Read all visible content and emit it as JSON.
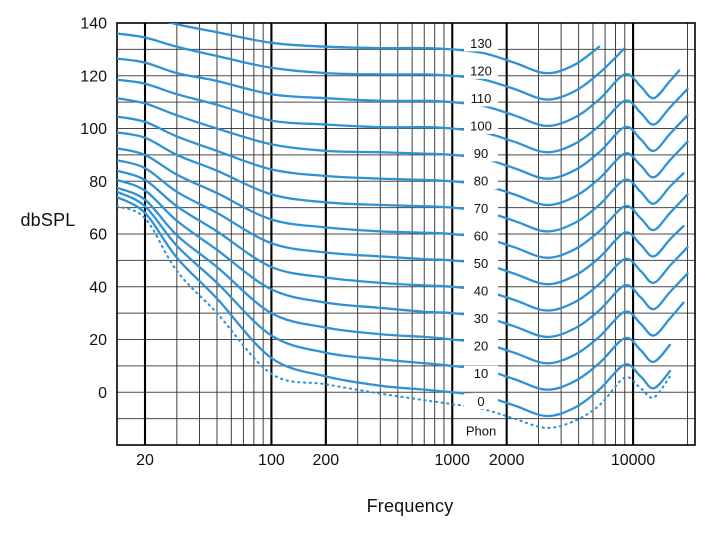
{
  "chart_data": {
    "type": "line",
    "xlabel": "Frequency",
    "ylabel": "dbSPL",
    "curve_unit_label": "Phon",
    "xscale": "log",
    "xlim": [
      14,
      22000
    ],
    "ylim": [
      -20,
      140
    ],
    "grid": true,
    "curve_color": "#2E92D5",
    "grid_color_h": "#4a4a4a",
    "grid_color_minor": "#2b2b2b",
    "grid_color_major": "#000000",
    "text_color": "#111111",
    "x_major_gridlines": [
      20,
      100,
      200,
      1000,
      2000,
      10000
    ],
    "x_tick_labels": [
      "20",
      "100",
      "200",
      "1000",
      "2000",
      "10000"
    ],
    "x_minor_gridlines": [
      30,
      40,
      50,
      60,
      70,
      80,
      90,
      300,
      400,
      500,
      600,
      700,
      800,
      900,
      3000,
      4000,
      5000,
      6000,
      7000,
      8000,
      9000,
      20000
    ],
    "y_gridlines": [
      -10,
      0,
      10,
      20,
      30,
      40,
      50,
      60,
      70,
      80,
      90,
      100,
      110,
      120,
      130
    ],
    "y_tick_values": [
      0,
      20,
      40,
      60,
      80,
      100,
      120,
      140
    ],
    "y_tick_labels": [
      "0",
      "20",
      "40",
      "60",
      "80",
      "100",
      "120",
      "140"
    ],
    "series": [
      {
        "name": "130",
        "phon": 130,
        "style": "solid",
        "labeled": true,
        "points": [
          [
            14,
            144
          ],
          [
            20,
            143
          ],
          [
            30,
            139.5
          ],
          [
            50,
            136.5
          ],
          [
            100,
            132.5
          ],
          [
            200,
            131
          ],
          [
            400,
            130.5
          ],
          [
            700,
            130.5
          ],
          [
            1000,
            130
          ],
          [
            1500,
            128.5
          ],
          [
            2200,
            125
          ],
          [
            3300,
            121
          ],
          [
            4700,
            124
          ],
          [
            6500,
            131
          ]
        ]
      },
      {
        "name": "120",
        "phon": 120,
        "style": "solid",
        "labeled": true,
        "points": [
          [
            14,
            136
          ],
          [
            20,
            134.5
          ],
          [
            30,
            131
          ],
          [
            50,
            127.5
          ],
          [
            100,
            123
          ],
          [
            200,
            121
          ],
          [
            400,
            120.5
          ],
          [
            700,
            120.5
          ],
          [
            1000,
            120
          ],
          [
            1500,
            118.5
          ],
          [
            2200,
            115
          ],
          [
            3300,
            111
          ],
          [
            4700,
            114
          ],
          [
            6500,
            121
          ],
          [
            9000,
            130.5
          ]
        ]
      },
      {
        "name": "110",
        "phon": 110,
        "style": "solid",
        "labeled": true,
        "points": [
          [
            14,
            126.5
          ],
          [
            20,
            125
          ],
          [
            30,
            121
          ],
          [
            50,
            118
          ],
          [
            100,
            113
          ],
          [
            200,
            111.5
          ],
          [
            400,
            110.5
          ],
          [
            700,
            110.5
          ],
          [
            1000,
            110
          ],
          [
            1500,
            108.5
          ],
          [
            2200,
            105
          ],
          [
            3300,
            101
          ],
          [
            4700,
            104
          ],
          [
            6500,
            111
          ],
          [
            9000,
            120.5
          ],
          [
            11000,
            116
          ],
          [
            13000,
            111.5
          ],
          [
            16000,
            118
          ],
          [
            18000,
            122
          ]
        ]
      },
      {
        "name": "100",
        "phon": 100,
        "style": "solid",
        "labeled": true,
        "points": [
          [
            14,
            118.5
          ],
          [
            20,
            117
          ],
          [
            30,
            113
          ],
          [
            50,
            109
          ],
          [
            100,
            103
          ],
          [
            200,
            101.5
          ],
          [
            400,
            100.5
          ],
          [
            700,
            100.5
          ],
          [
            1000,
            100
          ],
          [
            1500,
            98.5
          ],
          [
            2200,
            95
          ],
          [
            3300,
            91
          ],
          [
            4700,
            94
          ],
          [
            6500,
            101
          ],
          [
            9000,
            110.5
          ],
          [
            11000,
            106
          ],
          [
            13000,
            101.5
          ],
          [
            16000,
            108
          ],
          [
            20000,
            115
          ]
        ]
      },
      {
        "name": "90",
        "phon": 90,
        "style": "solid",
        "labeled": true,
        "points": [
          [
            14,
            111.5
          ],
          [
            20,
            109.5
          ],
          [
            30,
            105
          ],
          [
            50,
            100
          ],
          [
            100,
            94
          ],
          [
            200,
            91.5
          ],
          [
            400,
            91
          ],
          [
            700,
            90.5
          ],
          [
            1000,
            90
          ],
          [
            1500,
            88.5
          ],
          [
            2200,
            85
          ],
          [
            3300,
            81
          ],
          [
            4700,
            84
          ],
          [
            6500,
            91
          ],
          [
            9000,
            100.5
          ],
          [
            11000,
            96
          ],
          [
            13000,
            91.5
          ],
          [
            16000,
            98
          ],
          [
            20000,
            105
          ]
        ]
      },
      {
        "name": "80",
        "phon": 80,
        "style": "solid",
        "labeled": true,
        "points": [
          [
            14,
            104.5
          ],
          [
            20,
            102.5
          ],
          [
            30,
            97
          ],
          [
            50,
            91.5
          ],
          [
            100,
            84.5
          ],
          [
            200,
            82
          ],
          [
            400,
            81
          ],
          [
            700,
            80.5
          ],
          [
            1000,
            80
          ],
          [
            1500,
            78.5
          ],
          [
            2200,
            75
          ],
          [
            3300,
            71
          ],
          [
            4700,
            74
          ],
          [
            6500,
            81
          ],
          [
            9000,
            90.5
          ],
          [
            11000,
            86
          ],
          [
            13000,
            81.5
          ],
          [
            16000,
            88
          ],
          [
            20000,
            95
          ]
        ]
      },
      {
        "name": "70",
        "phon": 70,
        "style": "solid",
        "labeled": true,
        "points": [
          [
            14,
            98.5
          ],
          [
            20,
            96.5
          ],
          [
            30,
            90
          ],
          [
            50,
            84
          ],
          [
            100,
            75
          ],
          [
            200,
            72
          ],
          [
            400,
            71
          ],
          [
            700,
            70.5
          ],
          [
            1000,
            70
          ],
          [
            1500,
            68.5
          ],
          [
            2200,
            65
          ],
          [
            3300,
            61
          ],
          [
            4700,
            64
          ],
          [
            6500,
            71
          ],
          [
            9000,
            80.5
          ],
          [
            11000,
            76
          ],
          [
            13000,
            71.5
          ],
          [
            16000,
            78
          ],
          [
            19000,
            83
          ]
        ]
      },
      {
        "name": "60",
        "phon": 60,
        "style": "solid",
        "labeled": true,
        "points": [
          [
            14,
            92.5
          ],
          [
            20,
            90
          ],
          [
            30,
            82.5
          ],
          [
            50,
            75.5
          ],
          [
            100,
            65.5
          ],
          [
            200,
            62.5
          ],
          [
            400,
            61
          ],
          [
            700,
            60.5
          ],
          [
            1000,
            60
          ],
          [
            1500,
            58.5
          ],
          [
            2200,
            55
          ],
          [
            3300,
            51
          ],
          [
            4700,
            54
          ],
          [
            6500,
            61
          ],
          [
            9000,
            70.5
          ],
          [
            11000,
            66
          ],
          [
            13000,
            61.5
          ],
          [
            16000,
            68
          ],
          [
            20000,
            75
          ]
        ]
      },
      {
        "name": "50",
        "phon": 50,
        "style": "solid",
        "labeled": true,
        "points": [
          [
            14,
            88
          ],
          [
            20,
            85
          ],
          [
            30,
            76
          ],
          [
            50,
            68
          ],
          [
            100,
            56.5
          ],
          [
            200,
            53
          ],
          [
            400,
            51.5
          ],
          [
            700,
            50.5
          ],
          [
            1000,
            50
          ],
          [
            1500,
            48.5
          ],
          [
            2200,
            45
          ],
          [
            3300,
            41
          ],
          [
            4700,
            44
          ],
          [
            6500,
            51
          ],
          [
            9000,
            60.5
          ],
          [
            11000,
            56
          ],
          [
            13000,
            51.5
          ],
          [
            16000,
            58
          ],
          [
            19000,
            63
          ]
        ]
      },
      {
        "name": "40",
        "phon": 40,
        "style": "solid",
        "labeled": true,
        "points": [
          [
            14,
            84
          ],
          [
            20,
            80.5
          ],
          [
            30,
            70.5
          ],
          [
            50,
            61
          ],
          [
            100,
            47.5
          ],
          [
            200,
            43.5
          ],
          [
            400,
            41.5
          ],
          [
            700,
            40.5
          ],
          [
            1000,
            40
          ],
          [
            1500,
            38.5
          ],
          [
            2200,
            35
          ],
          [
            3300,
            31
          ],
          [
            4700,
            34
          ],
          [
            6500,
            41
          ],
          [
            9000,
            50.5
          ],
          [
            11000,
            46
          ],
          [
            13000,
            41.5
          ],
          [
            16000,
            48
          ],
          [
            20000,
            55
          ]
        ]
      },
      {
        "name": "30",
        "phon": 30,
        "style": "solid",
        "labeled": true,
        "points": [
          [
            14,
            80.5
          ],
          [
            20,
            76.5
          ],
          [
            30,
            65
          ],
          [
            50,
            54
          ],
          [
            100,
            39
          ],
          [
            200,
            34
          ],
          [
            400,
            32
          ],
          [
            700,
            30.5
          ],
          [
            1000,
            30
          ],
          [
            1500,
            28.5
          ],
          [
            2200,
            25
          ],
          [
            3300,
            21
          ],
          [
            4700,
            24
          ],
          [
            6500,
            31
          ],
          [
            9000,
            40.5
          ],
          [
            11000,
            36
          ],
          [
            13000,
            31.5
          ],
          [
            16000,
            38
          ],
          [
            20000,
            45
          ]
        ]
      },
      {
        "name": "20",
        "phon": 20,
        "style": "solid",
        "labeled": true,
        "points": [
          [
            14,
            77.5
          ],
          [
            20,
            73
          ],
          [
            30,
            59.5
          ],
          [
            50,
            47.5
          ],
          [
            100,
            30
          ],
          [
            200,
            24.5
          ],
          [
            400,
            22
          ],
          [
            700,
            21
          ],
          [
            1000,
            20
          ],
          [
            1500,
            18.5
          ],
          [
            2200,
            15
          ],
          [
            3300,
            11
          ],
          [
            4700,
            14
          ],
          [
            6500,
            21
          ],
          [
            9000,
            30.5
          ],
          [
            11000,
            26
          ],
          [
            13000,
            21.5
          ],
          [
            16000,
            28
          ],
          [
            19000,
            34
          ]
        ]
      },
      {
        "name": "10",
        "phon": 10,
        "style": "solid",
        "labeled": true,
        "points": [
          [
            14,
            76
          ],
          [
            20,
            70.5
          ],
          [
            30,
            55.5
          ],
          [
            50,
            41.5
          ],
          [
            100,
            21.5
          ],
          [
            200,
            15
          ],
          [
            400,
            12.5
          ],
          [
            700,
            11
          ],
          [
            1000,
            10
          ],
          [
            1500,
            8.5
          ],
          [
            2200,
            5
          ],
          [
            3300,
            1
          ],
          [
            4700,
            4
          ],
          [
            6500,
            11
          ],
          [
            9000,
            20.5
          ],
          [
            11000,
            16
          ],
          [
            13000,
            11.5
          ],
          [
            16000,
            18
          ]
        ]
      },
      {
        "name": "0",
        "phon": 0,
        "style": "solid",
        "labeled": true,
        "points": [
          [
            14,
            74
          ],
          [
            20,
            68
          ],
          [
            30,
            51
          ],
          [
            50,
            35.5
          ],
          [
            100,
            13
          ],
          [
            200,
            6
          ],
          [
            400,
            2.5
          ],
          [
            700,
            1
          ],
          [
            1000,
            0
          ],
          [
            1500,
            -1.5
          ],
          [
            2200,
            -5
          ],
          [
            3300,
            -9
          ],
          [
            4700,
            -6
          ],
          [
            6500,
            1
          ],
          [
            9000,
            10.5
          ],
          [
            11000,
            6
          ],
          [
            13000,
            1.5
          ],
          [
            16000,
            8
          ]
        ]
      },
      {
        "name": "threshold",
        "phon": null,
        "style": "dotted",
        "labeled": false,
        "points": [
          [
            14,
            70.5
          ],
          [
            20,
            66
          ],
          [
            30,
            46
          ],
          [
            50,
            30
          ],
          [
            100,
            7
          ],
          [
            200,
            3
          ],
          [
            400,
            -0.5
          ],
          [
            700,
            -3
          ],
          [
            1000,
            -4.5
          ],
          [
            1500,
            -6.5
          ],
          [
            2200,
            -10
          ],
          [
            3300,
            -13.5
          ],
          [
            4700,
            -11
          ],
          [
            6500,
            -5
          ],
          [
            9000,
            5.5
          ],
          [
            11000,
            1.5
          ],
          [
            13000,
            -2
          ],
          [
            16000,
            6
          ]
        ]
      }
    ]
  }
}
